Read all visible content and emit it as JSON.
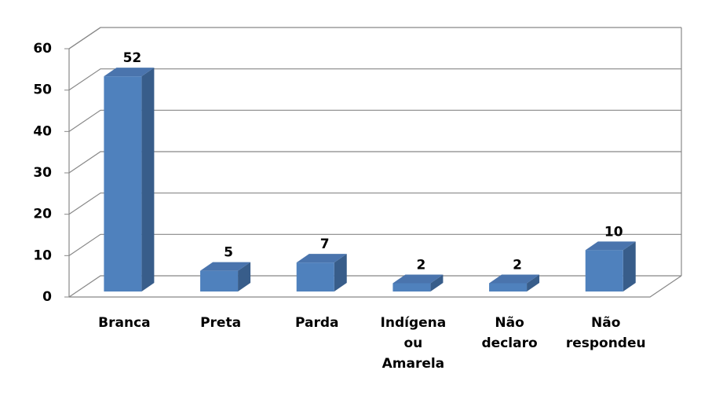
{
  "chart_data": {
    "type": "bar3d",
    "categories": [
      "Branca",
      "Preta",
      "Parda",
      "Indígena ou Amarela",
      "Não declaro",
      "Não respondeu"
    ],
    "values": [
      52,
      5,
      7,
      2,
      2,
      10
    ],
    "color": "#4f81bd",
    "ylim": [
      0,
      60
    ],
    "yticks": [
      0,
      10,
      20,
      30,
      40,
      50,
      60
    ],
    "grid": true
  }
}
